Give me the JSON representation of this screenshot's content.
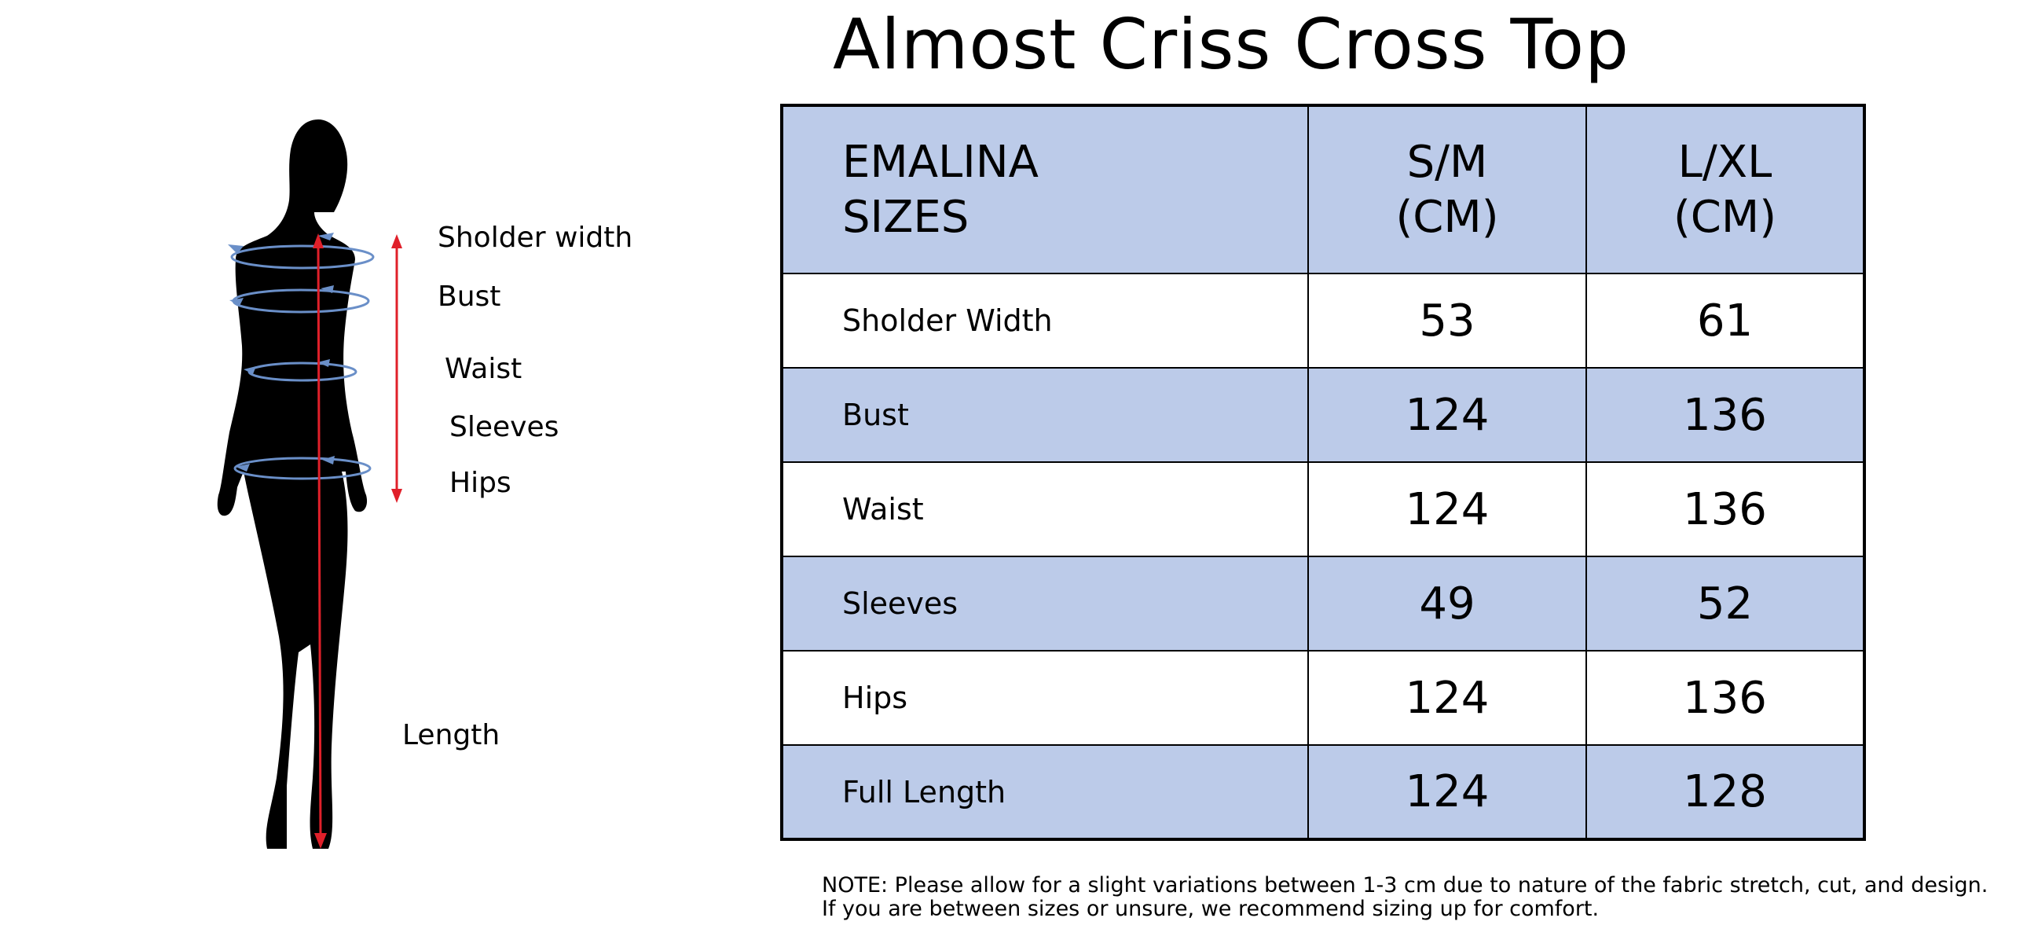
{
  "title": "Almost Criss Cross Top",
  "figure_labels": {
    "shoulder": "Sholder width",
    "bust": "Bust",
    "waist": "Waist",
    "sleeves": "Sleeves",
    "hips": "Hips",
    "length": "Length"
  },
  "table": {
    "header": {
      "label_line1": "EMALINA",
      "label_line2": "SIZES",
      "col1_line1": "S/M",
      "col1_line2": "(CM)",
      "col2_line1": "L/XL",
      "col2_line2": "(CM)"
    },
    "rows": [
      {
        "label": "Sholder Width",
        "sm": "53",
        "lxl": "61"
      },
      {
        "label": "Bust",
        "sm": "124",
        "lxl": "136"
      },
      {
        "label": "Waist",
        "sm": "124",
        "lxl": "136"
      },
      {
        "label": "Sleeves",
        "sm": "49",
        "lxl": "52"
      },
      {
        "label": "Hips",
        "sm": "124",
        "lxl": "136"
      },
      {
        "label": "Full Length",
        "sm": "124",
        "lxl": "128"
      }
    ]
  },
  "note": {
    "line1": "NOTE: Please allow for a slight variations between 1-3 cm due to nature of the fabric stretch, cut, and design.",
    "line2": "If you are between sizes or unsure, we recommend sizing up for comfort."
  },
  "colors": {
    "row_shade": "#bccbe9",
    "measure_blue": "#6a8fc8",
    "measure_red": "#e0202a"
  }
}
